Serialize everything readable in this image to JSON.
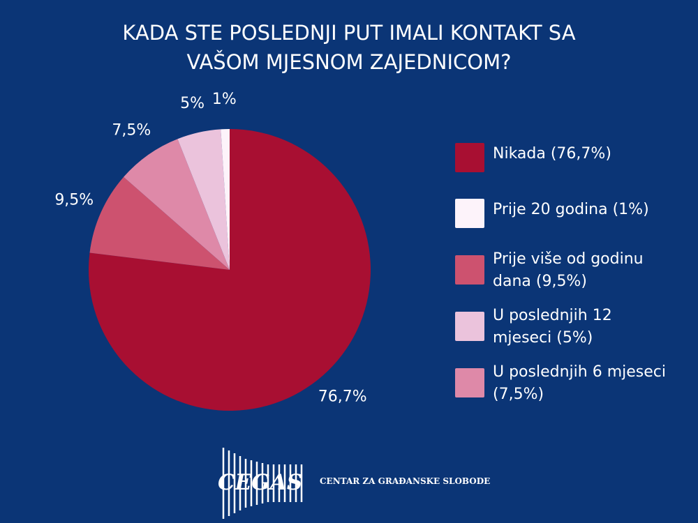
{
  "chart_data": {
    "type": "pie",
    "title": "KADA STE POSLEDNJI PUT IMALI KONTAKT SA VAŠOM MJESNOM ZAJEDNICOM?",
    "categories": [
      "Nikada (76,7%)",
      "Prije više od godinu dana (9,5%)",
      "U poslednjih 6 mjeseci (7,5%)",
      "U poslednjih 12 mjeseci (5%)",
      "Prije 20 godina (1%)"
    ],
    "values": [
      76.7,
      9.5,
      7.5,
      5,
      1
    ],
    "value_labels": [
      "76,7%",
      "9,5%",
      "7,5%",
      "5%",
      "1%"
    ],
    "colors": [
      "#a80f32",
      "#cd526f",
      "#de89a8",
      "#ebc3dc",
      "#fdf3fa"
    ]
  },
  "logo": {
    "name": "CEGAS",
    "tagline": "CENTAR ZA GRAĐANSKE SLOBODE"
  }
}
